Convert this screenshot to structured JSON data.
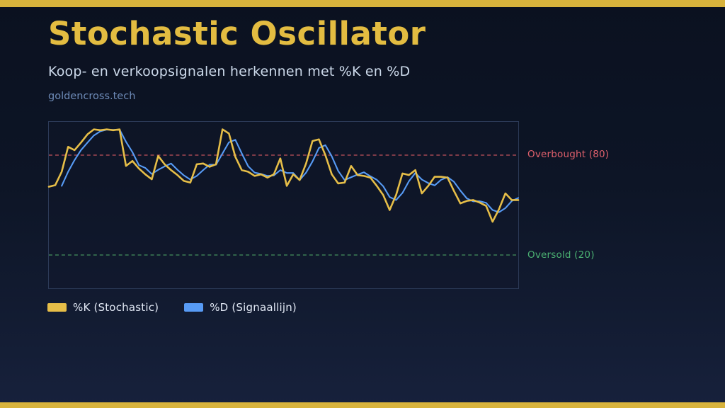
{
  "header": {
    "title": "Stochastic Oscillator",
    "subtitle": "Koop- en verkoopsignalen herkennen met %K en %D",
    "source": "goldencross.tech"
  },
  "theme": {
    "accent_gold": "#d8b33c",
    "title_gold": "#e3bc41",
    "background_top": "#0b1120",
    "background_bottom": "#17213c",
    "chart_border": "#2c3a57"
  },
  "legend": {
    "items": [
      {
        "label": "%K (Stochastic)",
        "color": "#e6be48"
      },
      {
        "label": "%D (Signaallijn)",
        "color": "#579bf5"
      }
    ]
  },
  "chart_data": {
    "type": "line",
    "title": "Stochastic Oscillator",
    "xlabel": "",
    "ylabel": "",
    "ylim": [
      0,
      100
    ],
    "grid": false,
    "legend_position": "bottom-left",
    "thresholds": [
      {
        "label": "Overbought (80)",
        "value": 80,
        "line_color": "#a34853",
        "label_color": "#e0606c",
        "style": "dashed"
      },
      {
        "label": "Oversold (20)",
        "value": 20,
        "line_color": "#3c7d54",
        "label_color": "#4bb172",
        "style": "dashed"
      }
    ],
    "series": [
      {
        "name": "%K (Stochastic)",
        "color": "#e6be48",
        "values": [
          61,
          62,
          70,
          85,
          83,
          87.5,
          92.5,
          95.5,
          95,
          95.5,
          95,
          95.5,
          73.5,
          76.5,
          72,
          68.5,
          65.5,
          79.5,
          74.5,
          71,
          68,
          64.5,
          63.5,
          74.5,
          75,
          73,
          74.5,
          95.5,
          93,
          79,
          71,
          70,
          67.5,
          68.5,
          66.5,
          68.5,
          78,
          61.5,
          68.5,
          65,
          75,
          88.5,
          89.5,
          80,
          68.5,
          63,
          63.5,
          73.5,
          68,
          67.5,
          66.5,
          61.5,
          56,
          47,
          56,
          69,
          68,
          71,
          57,
          61.5,
          67,
          67,
          66.5,
          58.5,
          51,
          52.5,
          53,
          51.5,
          49.5,
          40,
          47.5,
          57,
          53,
          53
        ]
      },
      {
        "name": "%D (Signaallijn)",
        "color": "#579bf5",
        "values": [
          null,
          null,
          61.5,
          70,
          77,
          83,
          87.5,
          91.8,
          94.3,
          95.3,
          95.2,
          95.3,
          88,
          81.8,
          74,
          72.3,
          68.7,
          71.2,
          73.2,
          75,
          71.2,
          67.8,
          65.3,
          67.5,
          71,
          74.2,
          74.2,
          81,
          87.7,
          89.2,
          81,
          73.3,
          69.5,
          68.7,
          67.5,
          67.8,
          71,
          69.3,
          69.3,
          65,
          69.5,
          76.2,
          84.3,
          86,
          79.3,
          70.5,
          65,
          66.7,
          68.3,
          69.7,
          67.3,
          65.2,
          61.3,
          54.8,
          53,
          57.3,
          64.3,
          69.3,
          65.3,
          63.2,
          61.8,
          65.2,
          66.8,
          64,
          58.7,
          54,
          52.2,
          52.3,
          51.3,
          47,
          45.7,
          48.2,
          52.5,
          54.3
        ]
      }
    ]
  }
}
